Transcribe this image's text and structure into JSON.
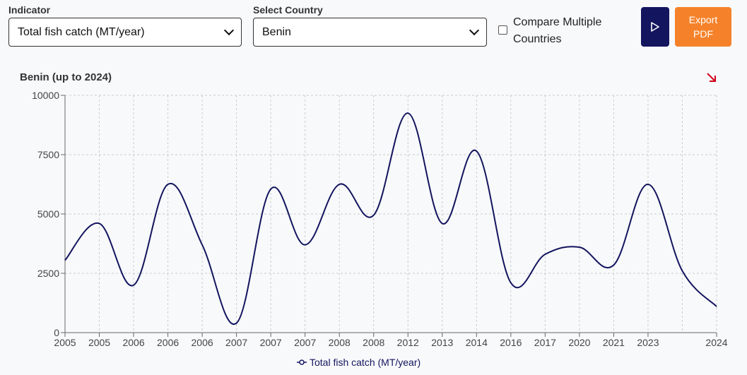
{
  "controls": {
    "indicator_label": "Indicator",
    "indicator_value": "Total fish catch (MT/year)",
    "country_label": "Select Country",
    "country_value": "Benin",
    "compare_label": "Compare Multiple Countries",
    "compare_checked": false,
    "play_icon": "play-icon",
    "export_label": "Export PDF",
    "colors": {
      "navy": "#13155e",
      "orange": "#f5822a",
      "corner_icon": "#d0021b"
    }
  },
  "chart_data": {
    "type": "line",
    "title": "Benin (up to 2024)",
    "corner_icon": "arrow-down-right-icon",
    "x": [
      "2005",
      "2005",
      "2006",
      "2006",
      "2006",
      "2007",
      "2007",
      "2007",
      "2008",
      "2008",
      "2012",
      "2013",
      "2014",
      "2016",
      "2017",
      "2020",
      "2021",
      "2023",
      "",
      "2024"
    ],
    "series": [
      {
        "name": "Total fish catch (MT/year)",
        "color": "#13155e",
        "values": [
          3050,
          4600,
          2000,
          6250,
          3700,
          400,
          6050,
          3700,
          6250,
          4950,
          9250,
          4600,
          7650,
          2100,
          3300,
          3600,
          2850,
          6250,
          2600,
          1100
        ]
      }
    ],
    "xlabel": "",
    "ylabel": "",
    "ylim": [
      0,
      10000
    ],
    "yticks": [
      0,
      2500,
      5000,
      7500,
      10000
    ],
    "grid": true,
    "legend": "bottom"
  }
}
